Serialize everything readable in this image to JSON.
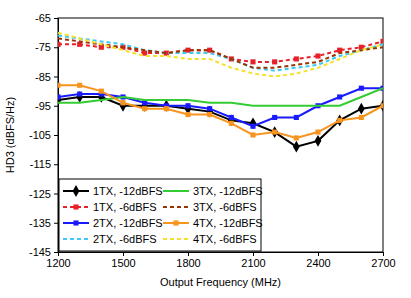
{
  "chart_data": {
    "type": "line",
    "x_label": "Output Frequency (MHz)",
    "y_label": "HD3 (dBFS/Hz)",
    "x": [
      1200,
      1300,
      1400,
      1500,
      1600,
      1700,
      1800,
      1900,
      2000,
      2100,
      2200,
      2300,
      2400,
      2500,
      2600,
      2700
    ],
    "xlim": [
      1200,
      2700
    ],
    "xticks": [
      1200,
      1500,
      1800,
      2100,
      2400,
      2700
    ],
    "ylim": [
      -145,
      -65
    ],
    "yticks": [
      -145,
      -135,
      -125,
      -115,
      -105,
      -95,
      -85,
      -75,
      -65
    ],
    "grid": false,
    "legend": "bottom-left",
    "series": [
      {
        "name": "1TX, -12dBFS",
        "color": "#000000",
        "marker": "diamond",
        "line_style": "solid",
        "values": [
          -93,
          -92,
          -92,
          -95,
          -95,
          -95,
          -96,
          -97,
          -100,
          -101,
          -104,
          -109,
          -107,
          -100,
          -96,
          -95
        ]
      },
      {
        "name": "1TX, -6dBFS",
        "color": "#e8202a",
        "marker": "square",
        "line_style": "dashed",
        "values": [
          -74,
          -74,
          -75,
          -75,
          -77,
          -77,
          -76,
          -76,
          -79,
          -80,
          -80,
          -79,
          -78,
          -76,
          -75,
          -73
        ]
      },
      {
        "name": "2TX, -12dBFS",
        "color": "#1a1aff",
        "marker": "square",
        "line_style": "solid",
        "values": [
          -92,
          -91,
          -91,
          -92,
          -94,
          -95,
          -95,
          -96,
          -99,
          -102,
          -99,
          -99,
          -95,
          -92,
          -89,
          -89
        ]
      },
      {
        "name": "2TX, -6dBFS",
        "color": "#3ec9f0",
        "marker": "none",
        "line_style": "dashed",
        "values": [
          -71,
          -72,
          -73,
          -74,
          -76,
          -77,
          -77,
          -77,
          -79,
          -82,
          -83,
          -82,
          -81,
          -78,
          -76,
          -74
        ]
      },
      {
        "name": "3TX, -12dBFS",
        "color": "#33cc33",
        "marker": "none",
        "line_style": "solid",
        "values": [
          -94,
          -94,
          -93,
          -92,
          -93,
          -93,
          -93,
          -94,
          -94,
          -95,
          -95,
          -95,
          -95,
          -95,
          -92,
          -89
        ]
      },
      {
        "name": "3TX, -6dBFS",
        "color": "#993300",
        "marker": "none",
        "line_style": "dashed",
        "values": [
          -72,
          -73,
          -74,
          -75,
          -76,
          -77,
          -76,
          -76,
          -79,
          -82,
          -82,
          -81,
          -80,
          -77,
          -76,
          -75
        ]
      },
      {
        "name": "4TX, -12dBFS",
        "color": "#f7941d",
        "marker": "square",
        "line_style": "solid",
        "values": [
          -88,
          -88,
          -90,
          -94,
          -96,
          -96,
          -98,
          -98,
          -101,
          -105,
          -104,
          -106,
          -104,
          -100,
          -99,
          -95
        ]
      },
      {
        "name": "4TX, -6dBFS",
        "color": "#f5e12b",
        "marker": "none",
        "line_style": "dashed",
        "values": [
          -70,
          -72,
          -74,
          -76,
          -78,
          -78,
          -79,
          -79,
          -82,
          -84,
          -85,
          -84,
          -82,
          -79,
          -76,
          -74
        ]
      }
    ]
  }
}
